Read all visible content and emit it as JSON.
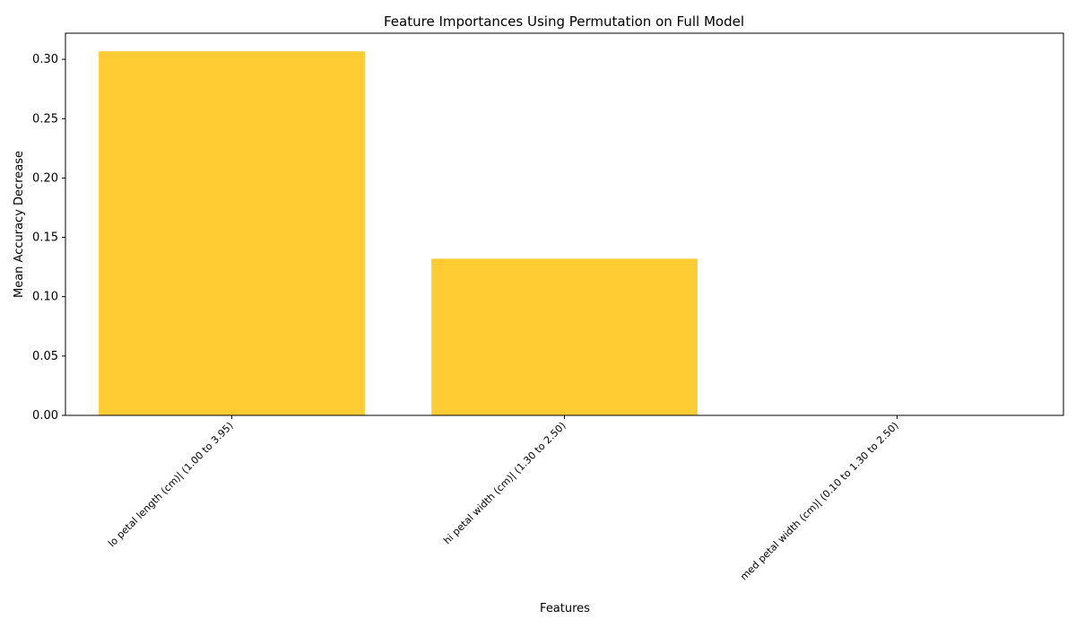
{
  "chart_data": {
    "type": "bar",
    "title": "Feature Importances Using Permutation on Full Model",
    "xlabel": "Features",
    "ylabel": "Mean Accuracy Decrease",
    "categories": [
      "lo petal length (cm)| (1.00 to 3.95)",
      "hi petal width (cm)| (1.30 to 2.50)",
      "med petal width (cm)| (0.10 to 1.30 to 2.50)"
    ],
    "values": [
      0.3067,
      0.132,
      0.0
    ],
    "ylim": [
      0,
      0.322
    ],
    "yticks": [
      "0.00",
      "0.05",
      "0.10",
      "0.15",
      "0.20",
      "0.25",
      "0.30"
    ],
    "bar_color": "#FFCC33",
    "grid": false,
    "legend": "none"
  }
}
